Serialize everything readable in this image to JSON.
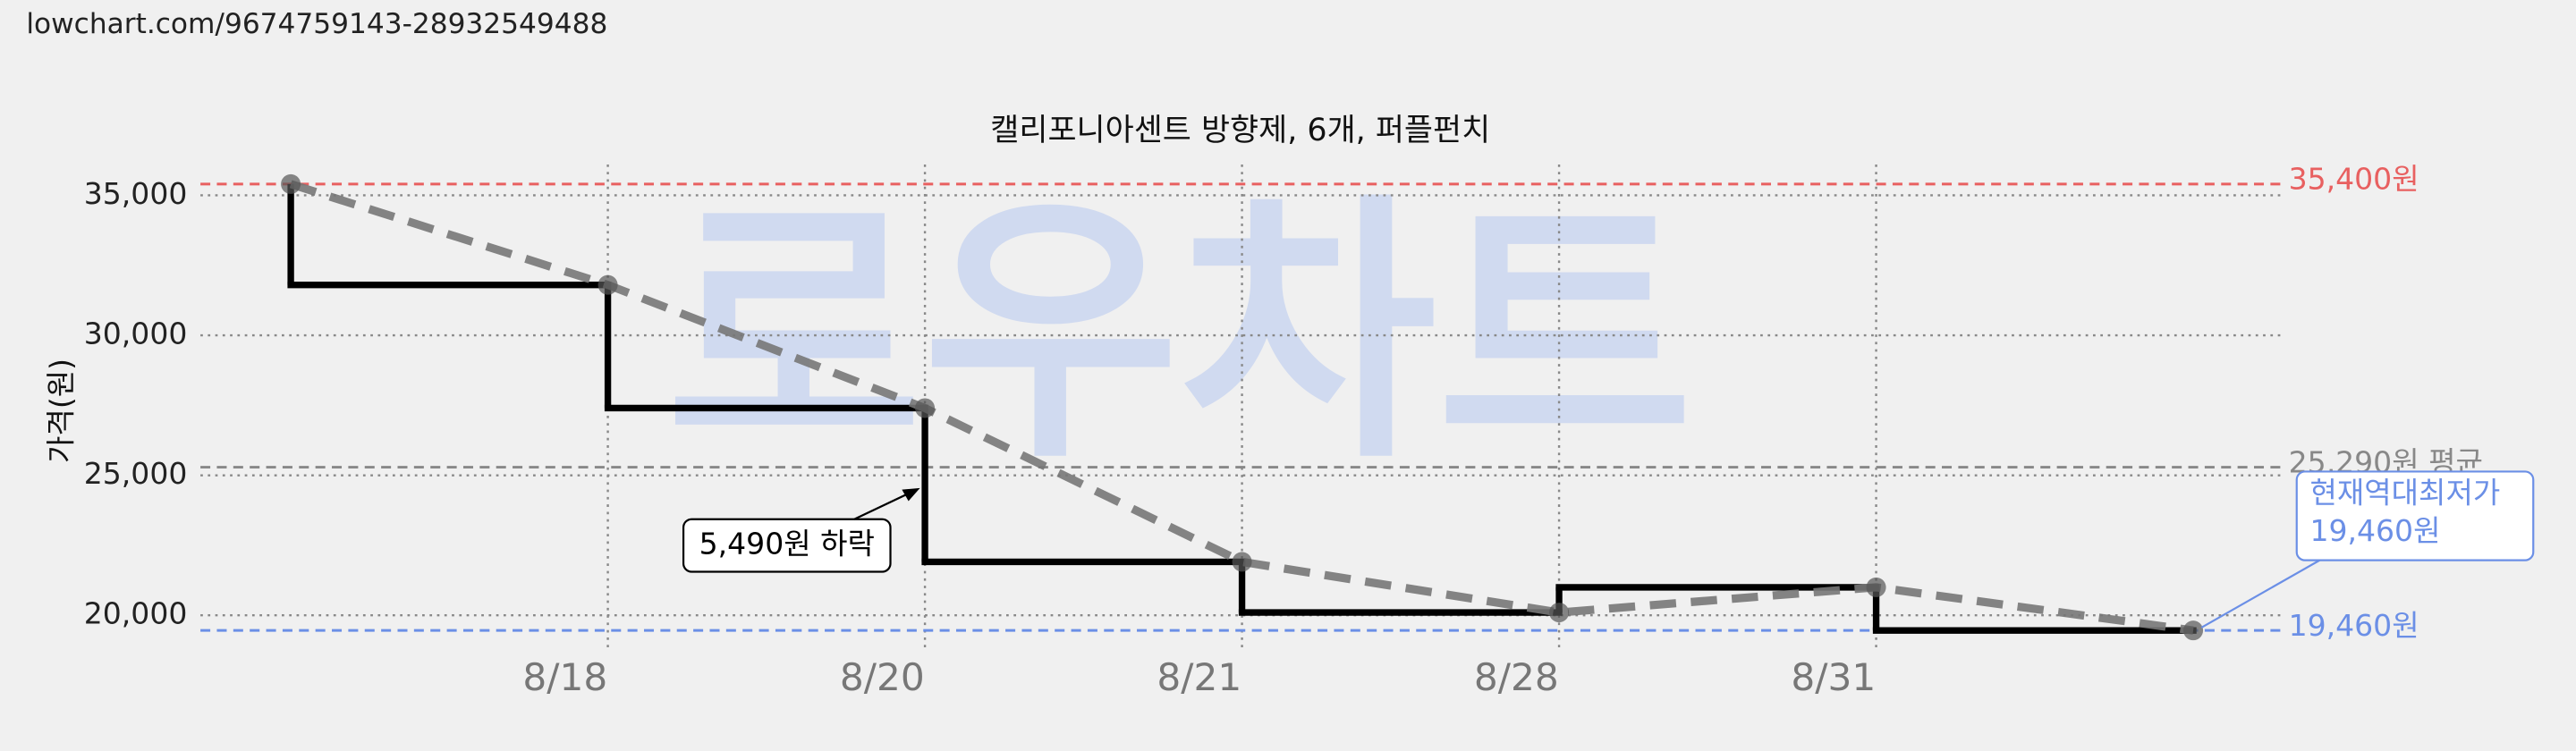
{
  "header": {
    "url": "lowchart.com/9674759143-28932549488"
  },
  "chart_data": {
    "type": "step",
    "title": "캘리포니아센트 방향제, 6개, 퍼플펀치",
    "ylabel": "가격(원)",
    "watermark": "로우차트",
    "categories": [
      null,
      "8/18",
      "8/20",
      "8/21",
      "8/28",
      "8/31",
      null
    ],
    "series": [
      {
        "name": "가격",
        "color": "#000000",
        "trend_color": "#777777",
        "values": [
          35400,
          31800,
          27400,
          21910,
          20100,
          21000,
          19460
        ]
      }
    ],
    "ylim": [
      18800,
      36100
    ],
    "yticks": [
      {
        "value": 20000,
        "label": "20,000"
      },
      {
        "value": 25000,
        "label": "25,000"
      },
      {
        "value": 30000,
        "label": "30,000"
      },
      {
        "value": 35000,
        "label": "35,000"
      }
    ],
    "grid": true,
    "reference_lines": [
      {
        "value": 35400,
        "label": "35,400원",
        "color": "#e86060"
      },
      {
        "value": 25290,
        "label": "25,290원 평균",
        "color": "#888888"
      },
      {
        "value": 19460,
        "label": "19,460원",
        "color": "#6b8fe6"
      }
    ],
    "annotations": [
      {
        "text": "5,490원 하락"
      },
      {
        "text": [
          "현재역대최저가",
          "19,460원"
        ],
        "color": "#6b8fe6"
      }
    ]
  }
}
